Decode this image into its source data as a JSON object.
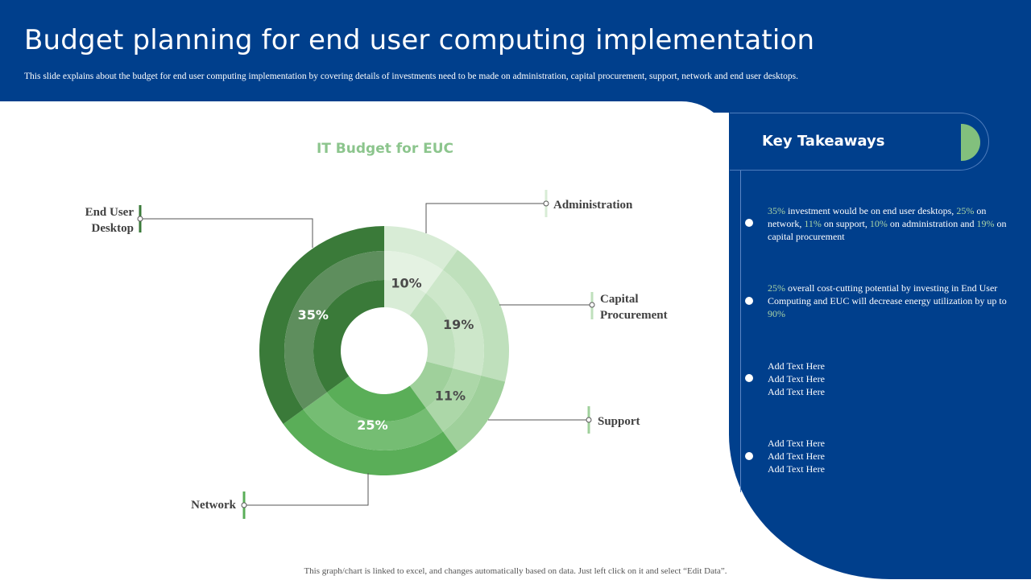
{
  "header": {
    "title": "Budget planning for end user computing implementation",
    "subtitle": "This slide explains  about the budget for end user computing implementation  by covering details of investments need to be made  on administration,  capital procurement,  support, network and end user desktops."
  },
  "chart_data": {
    "type": "pie",
    "variant": "donut",
    "title": "IT Budget for EUC",
    "categories": [
      "Administration",
      "Capital Procurement",
      "Support",
      "Network",
      "End User Desktop"
    ],
    "values": [
      10,
      19,
      11,
      25,
      35
    ],
    "value_labels": [
      "10%",
      "19%",
      "11%",
      "25%",
      "35%"
    ],
    "label_lines": {
      "end_user_desktop": [
        "End User",
        "Desktop"
      ],
      "administration": [
        "Administration"
      ],
      "capital_procurement": [
        "Capital",
        "Procurement"
      ],
      "support": [
        "Support"
      ],
      "network": [
        "Network"
      ]
    },
    "colors": {
      "administration": [
        "#d8ecd6",
        "#e4f2e2",
        "#d8ecd6"
      ],
      "capital_procurement": [
        "#bfe0bc",
        "#cde7ca",
        "#bfe0bc"
      ],
      "support": [
        "#9fd09b",
        "#acd7a8",
        "#9fd09b"
      ],
      "network": [
        "#5aae58",
        "#75bd73",
        "#5aae58"
      ],
      "end_user_desktop": [
        "#3a7a39",
        "#5e8e5d",
        "#3a7a39"
      ]
    }
  },
  "takeaways": {
    "title": "Key Takeaways",
    "item1": {
      "p1": "35%",
      "t1": " investment would be on end user desktops, ",
      "p2": "25%",
      "t2": " on network, ",
      "p3": "11%",
      "t3": " on support, ",
      "p4": "10%",
      "t4": " on administration and ",
      "p5": "19%",
      "t5": " on capital procurement"
    },
    "item2": {
      "p1": "25%",
      "t1": " overall cost-cutting potential by investing in End User Computing and EUC  will  decrease energy utilization by up to ",
      "p2": "90%"
    },
    "item3": [
      "Add Text Here",
      "Add Text Here",
      "Add Text Here"
    ],
    "item4": [
      "Add Text Here",
      "Add Text Here",
      "Add Text Here"
    ]
  },
  "footer": "This graph/chart is linked to excel,  and changes  automatically based on data. Just left click on it and select  “Edit Data”.",
  "colors": {
    "navy": "#003f8c",
    "accent_green": "#82c07d",
    "connector": "#555555"
  }
}
